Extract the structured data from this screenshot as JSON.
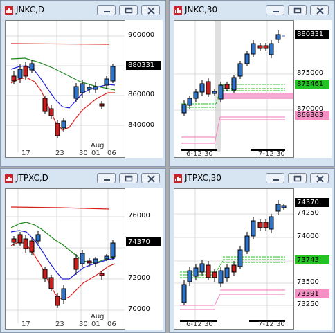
{
  "windows": [
    {
      "id": "jnkc-daily",
      "title": "JNKC,D",
      "y_ticks": [
        "900000",
        "880000",
        "860000",
        "840000"
      ],
      "price_labels": [
        {
          "text": "880331",
          "bg": "#000000",
          "fg": "#ffffff"
        }
      ],
      "x_labels": [
        "17",
        "23",
        "30",
        "01",
        "06"
      ],
      "x_sub": "Aug"
    },
    {
      "id": "jnkc-30min",
      "title": "JNKC,30",
      "y_ticks": [
        "875000",
        "870000"
      ],
      "price_labels": [
        {
          "text": "880331",
          "bg": "#000000",
          "fg": "#ffffff"
        },
        {
          "text": "873461",
          "bg": "#22c322",
          "fg": "#000000"
        },
        {
          "text": "869363",
          "bg": "#f58fc4",
          "fg": "#000000"
        }
      ],
      "x_labels": [
        "6-12:30",
        "7-12:30"
      ],
      "x_sub": ""
    },
    {
      "id": "jtpxc-daily",
      "title": "JTPXC,D",
      "y_ticks": [
        "76000",
        "72000",
        "70000"
      ],
      "price_labels": [
        {
          "text": "74370",
          "bg": "#000000",
          "fg": "#ffffff"
        }
      ],
      "x_labels": [
        "17",
        "23",
        "30",
        "01",
        "06"
      ],
      "x_sub": "Aug"
    },
    {
      "id": "jtpxc-30min",
      "title": "JTPXC,30",
      "y_ticks": [
        "74250",
        "74000",
        "73500",
        "73250"
      ],
      "price_labels": [
        {
          "text": "74370",
          "bg": "#000000",
          "fg": "#ffffff"
        },
        {
          "text": "73743",
          "bg": "#22c322",
          "fg": "#000000"
        },
        {
          "text": "73391",
          "bg": "#f58fc4",
          "fg": "#000000"
        }
      ],
      "x_labels": [
        "6-12:30",
        "7-12:30"
      ],
      "x_sub": ""
    }
  ],
  "buttons": {
    "minimize": "minimize-icon",
    "restore": "restore-icon",
    "close": "close-icon"
  },
  "colors": {
    "up_candle": "#2f73c9",
    "down_candle": "#c81e1e",
    "ma_blue": "#1f1fd8",
    "ma_green": "#1f8a1f",
    "ma_red": "#d81f1f",
    "support_green": "#22c322",
    "support_pink": "#f58fc4"
  }
}
